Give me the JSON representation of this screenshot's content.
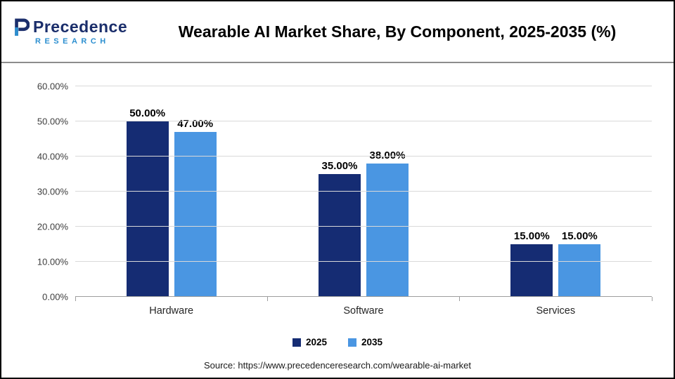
{
  "header": {
    "logo": {
      "line1": "Precedence",
      "line2": "RESEARCH"
    },
    "title": "Wearable AI Market Share, By Component, 2025-2035 (%)"
  },
  "chart_data": {
    "type": "bar",
    "title": "Wearable AI Market Share, By Component, 2025-2035 (%)",
    "categories": [
      "Hardware",
      "Software",
      "Services"
    ],
    "series": [
      {
        "name": "2025",
        "color": "#152C73",
        "values": [
          50,
          35,
          15
        ],
        "labels": [
          "50.00%",
          "35.00%",
          "15.00%"
        ]
      },
      {
        "name": "2035",
        "color": "#4A96E2",
        "values": [
          47,
          38,
          15
        ],
        "labels": [
          "47.00%",
          "38.00%",
          "15.00%"
        ]
      }
    ],
    "xlabel": "",
    "ylabel": "",
    "ylim": [
      0,
      60
    ],
    "yticks": [
      0,
      10,
      20,
      30,
      40,
      50,
      60
    ],
    "ytick_labels": [
      "0.00%",
      "10.00%",
      "20.00%",
      "30.00%",
      "40.00%",
      "50.00%",
      "60.00%"
    ],
    "grid": true,
    "legend_position": "bottom"
  },
  "footer": {
    "source": "Source: https://www.precedenceresearch.com/wearable-ai-market"
  }
}
